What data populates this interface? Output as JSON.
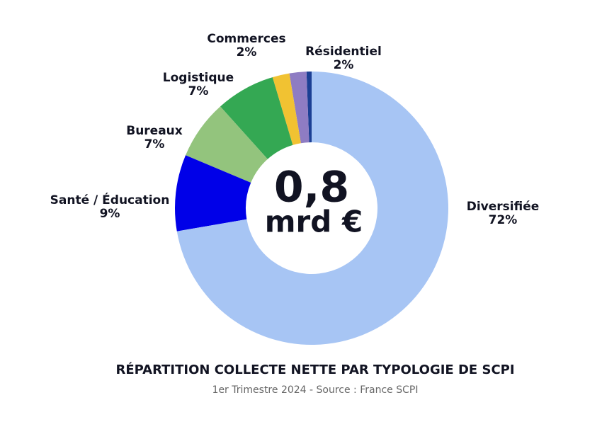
{
  "chart_data": {
    "type": "donut",
    "title": "RÉPARTITION COLLECTE NETTE PAR TYPOLOGIE DE SCPI",
    "subtitle": "1er Trimestre 2024 - Source : France SCPI",
    "center_text": [
      "0,8",
      "mrd €"
    ],
    "categories": [
      "Diversifiée",
      "Santé / Éducation",
      "Bureaux",
      "Logistique",
      "Commerces",
      "Résidentiel",
      null
    ],
    "values": [
      72,
      9,
      7,
      7,
      2,
      2,
      0.6
    ],
    "value_labels": [
      "72%",
      "9%",
      "7%",
      "7%",
      "2%",
      "2%",
      null
    ],
    "colors": [
      "#a7c5f4",
      "#0000e8",
      "#93c47d",
      "#34a853",
      "#f1c232",
      "#8e7cc3",
      "#1c3f94"
    ]
  }
}
